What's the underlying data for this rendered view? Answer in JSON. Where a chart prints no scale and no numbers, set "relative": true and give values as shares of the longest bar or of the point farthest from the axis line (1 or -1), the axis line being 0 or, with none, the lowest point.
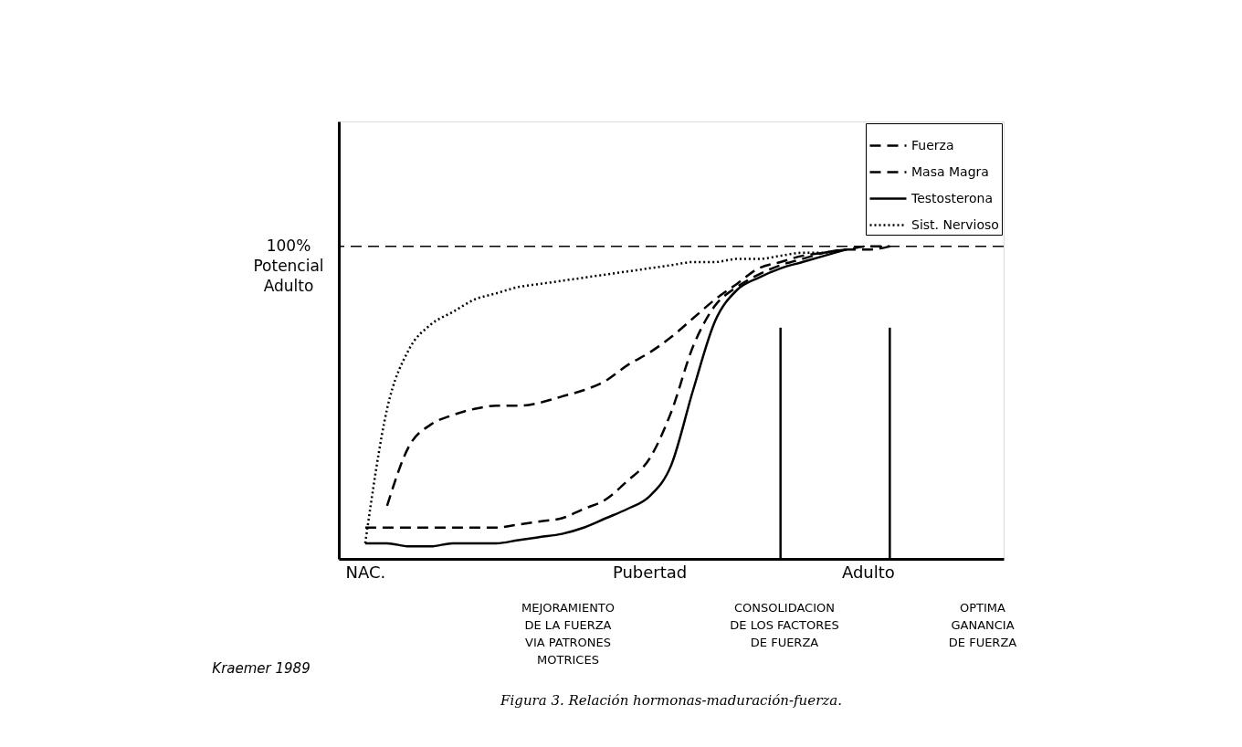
{
  "chart_data": {
    "type": "line",
    "relative": true,
    "title": "Figura 3. Relación hormonas-maduración-fuerza.",
    "categories": [
      null,
      "NAC.",
      null,
      null,
      null,
      null,
      null,
      null,
      null,
      null,
      null,
      null,
      null,
      null,
      "Pubertad",
      null,
      null,
      null,
      null,
      null,
      null,
      null,
      null,
      null,
      "Adulto",
      null,
      null,
      null,
      null,
      null,
      null
    ],
    "legend": "top right",
    "series": [
      {
        "name": "Fuerza",
        "color": "#000000",
        "line_style": "dashed",
        "values": [
          null,
          0.1,
          0.1,
          0.1,
          0.1,
          0.1,
          0.1,
          0.1,
          0.11,
          0.12,
          0.13,
          0.16,
          0.19,
          0.25,
          0.32,
          0.47,
          0.68,
          0.81,
          0.87,
          0.91,
          0.94,
          0.96,
          0.98,
          0.99,
          1.0,
          1.0,
          null,
          null,
          null,
          null,
          null
        ]
      },
      {
        "name": "Masa Magra",
        "color": "#000000",
        "line_style": "dashed",
        "values": [
          null,
          null,
          0.17,
          0.36,
          0.43,
          0.46,
          0.48,
          0.49,
          0.49,
          0.5,
          0.52,
          0.54,
          0.57,
          0.62,
          0.66,
          0.71,
          0.77,
          0.83,
          0.88,
          0.93,
          0.95,
          0.97,
          0.98,
          0.99,
          0.99,
          1.0,
          null,
          null,
          null,
          null,
          null
        ]
      },
      {
        "name": "Testosterona",
        "color": "#000000",
        "line_style": "solid",
        "values": [
          null,
          0.05,
          0.05,
          0.04,
          0.04,
          0.05,
          0.05,
          0.05,
          0.06,
          0.07,
          0.08,
          0.1,
          0.13,
          0.16,
          0.2,
          0.3,
          0.54,
          0.76,
          0.86,
          0.9,
          0.93,
          0.95,
          0.97,
          0.99,
          null,
          null,
          null,
          null,
          null,
          null,
          null
        ]
      },
      {
        "name": "Sist. Nervioso",
        "color": "#000000",
        "line_style": "dotted",
        "values": [
          null,
          0.05,
          0.48,
          0.67,
          0.75,
          0.79,
          0.83,
          0.85,
          0.87,
          0.88,
          0.89,
          0.9,
          0.91,
          0.92,
          0.93,
          0.94,
          0.95,
          0.95,
          0.96,
          0.96,
          0.97,
          0.98,
          0.98,
          0.99,
          null,
          null,
          null,
          null,
          null,
          null,
          null
        ]
      },
      {
        "type": "bar",
        "color": "#000000",
        "values": [
          null,
          null,
          null,
          null,
          null,
          null,
          null,
          null,
          null,
          null,
          null,
          null,
          null,
          null,
          null,
          null,
          null,
          null,
          null,
          null,
          0.74,
          null,
          null,
          null,
          null,
          0.74,
          null,
          null,
          null,
          null,
          null
        ]
      }
    ],
    "ref_lines": [
      {
        "axis": "y",
        "value": 1,
        "label": "100%\nPotencial\nAdulto",
        "line_style": "dashed",
        "color": "#000000"
      }
    ],
    "annotations": [
      "MEJORAMIENTO\nDE LA FUERZA\nVIA PATRONES\nMOTRICES",
      "CONSOLIDACION\nDE LOS FACTORES\nDE FUERZA",
      "OPTIMA\nGANANCIA\nDE FUERZA",
      "Kraemer 1989"
    ]
  }
}
